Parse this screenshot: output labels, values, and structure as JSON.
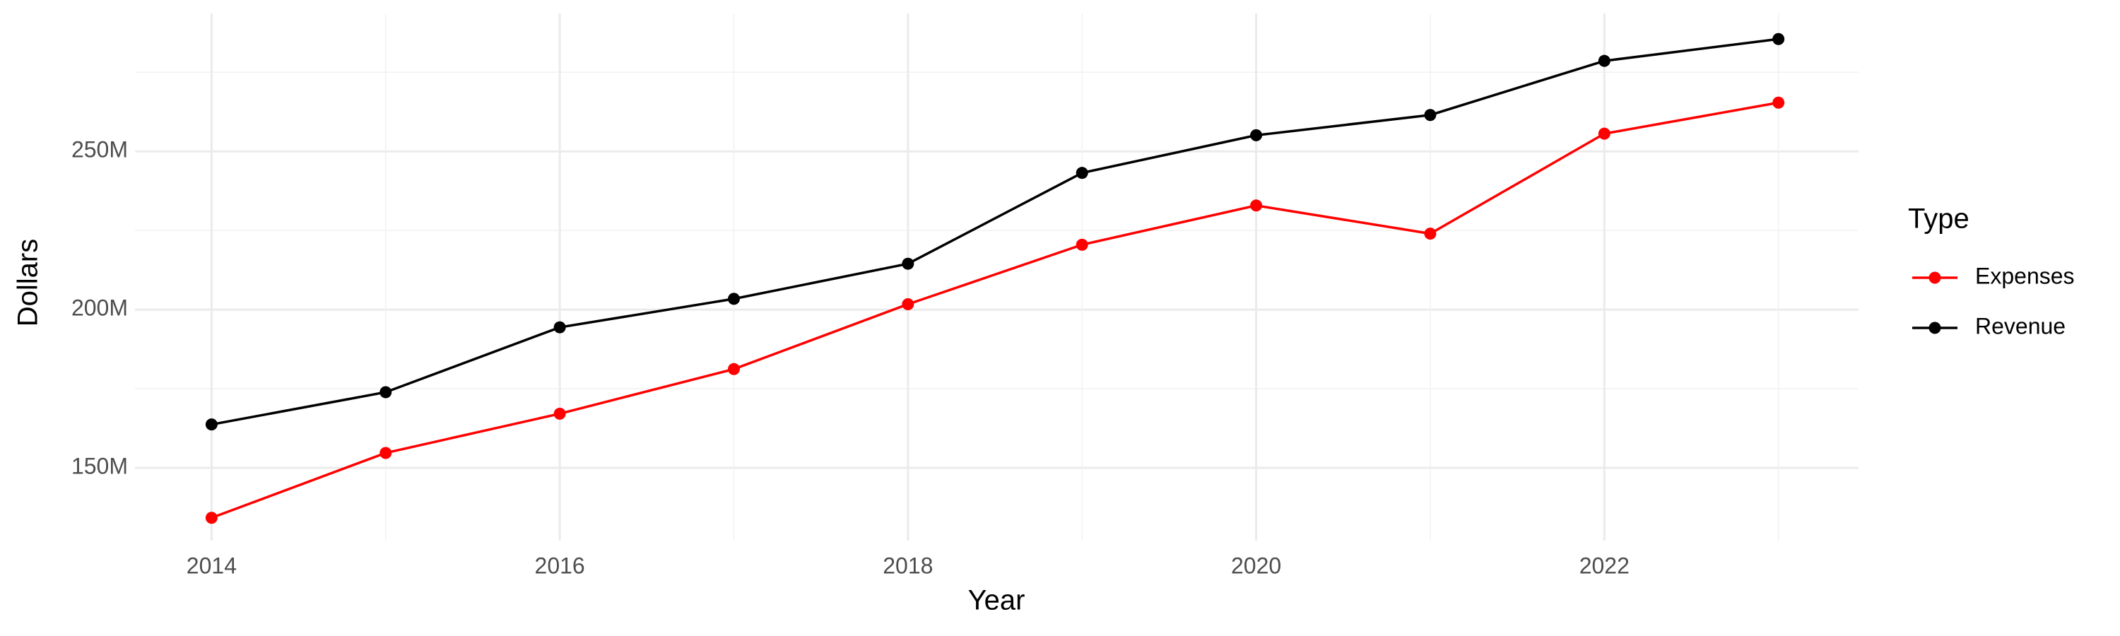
{
  "chart_data": {
    "type": "line",
    "x_label": "Year",
    "y_label": "Dollars",
    "legend_title": "Type",
    "x": [
      2014,
      2015,
      2016,
      2017,
      2018,
      2019,
      2020,
      2021,
      2022,
      2023
    ],
    "series": [
      {
        "name": "Expenses",
        "color": "#ff0000",
        "values": [
          134200000,
          154700000,
          167100000,
          181200000,
          201700000,
          220500000,
          232900000,
          224000000,
          255600000,
          265400000
        ]
      },
      {
        "name": "Revenue",
        "color": "#000000",
        "values": [
          163700000,
          173900000,
          194400000,
          203400000,
          214500000,
          243200000,
          255100000,
          261500000,
          278600000,
          285500000
        ]
      }
    ],
    "xlim": [
      2013.56,
      2023.46
    ],
    "xticks": [
      2014,
      2016,
      2018,
      2020,
      2022
    ],
    "ylim": [
      127000000,
      293600000
    ],
    "yticks": [
      {
        "value": 150000000,
        "label": "150M"
      },
      {
        "value": 200000000,
        "label": "200M"
      },
      {
        "value": 250000000,
        "label": "250M"
      }
    ],
    "grid": true,
    "legend_position": "right"
  }
}
